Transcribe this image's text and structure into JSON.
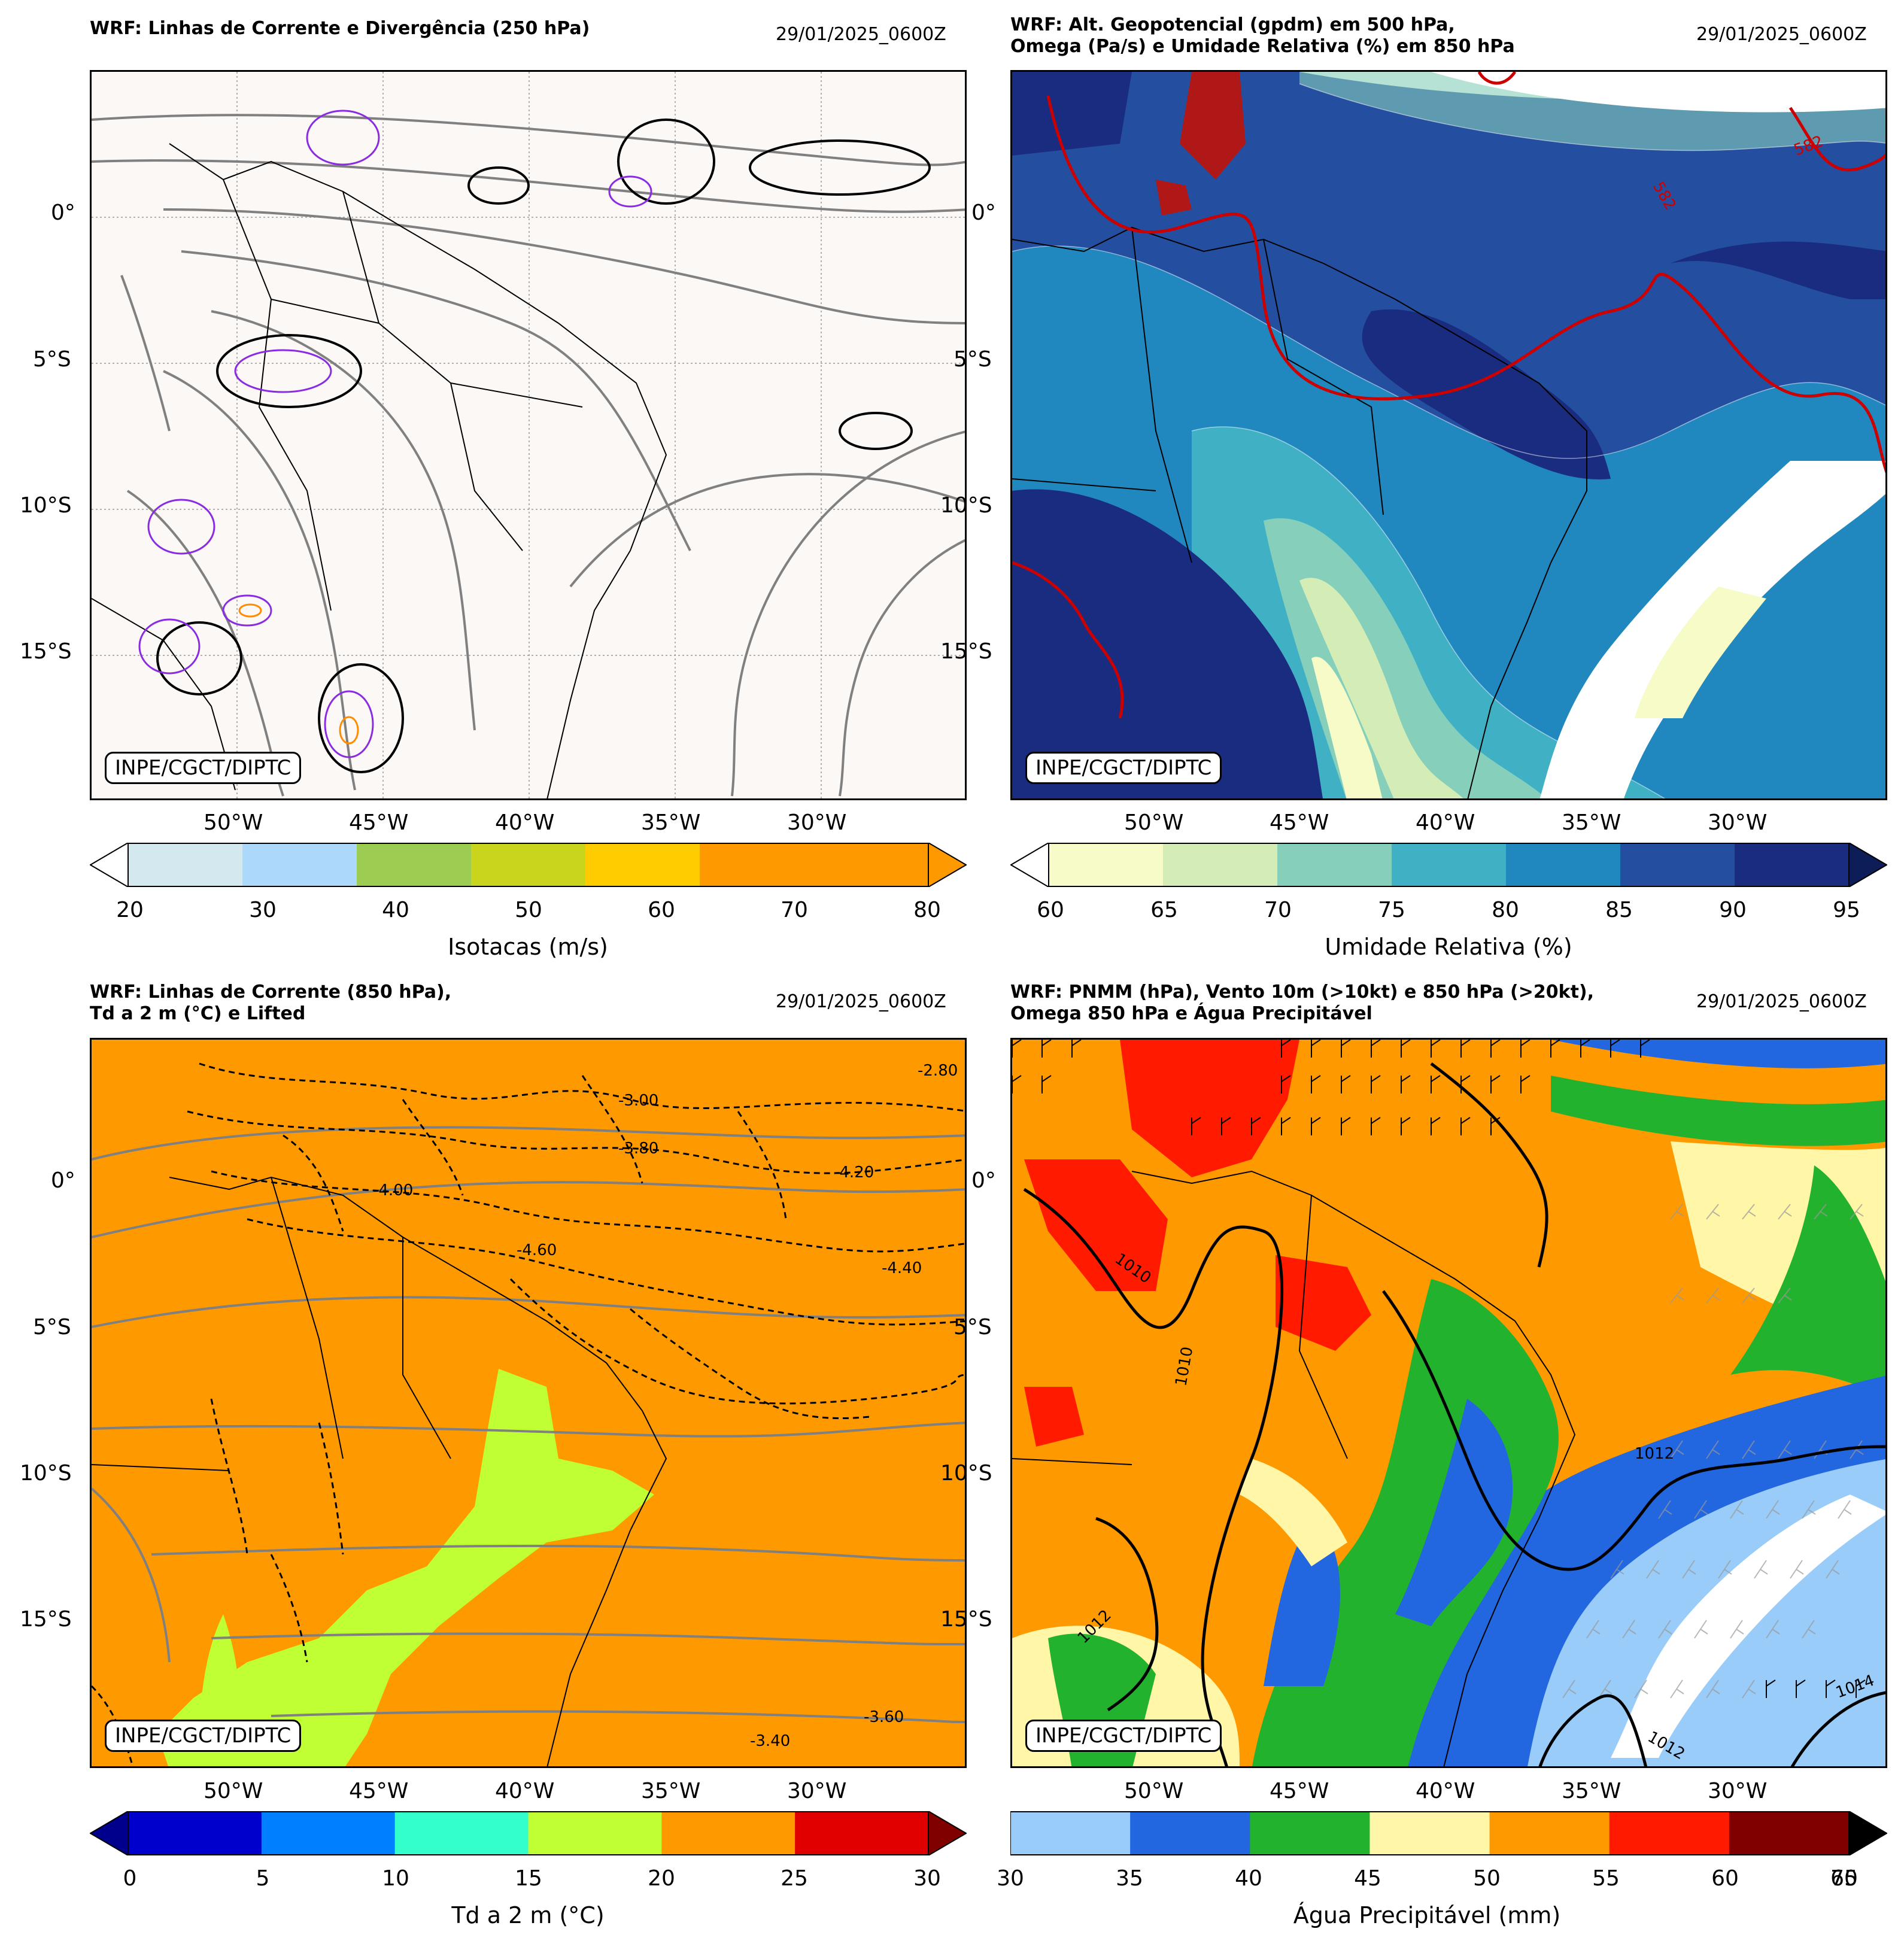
{
  "panels": [
    {
      "title": "WRF: Linhas de Corrente e Divergência (250 hPa)",
      "date": "29/01/2025_0600Z",
      "credit": "INPE/CGCT/DIPTC",
      "lat_ticks": [
        "0°",
        "5°S",
        "10°S",
        "15°S"
      ],
      "lon_ticks": [
        "50°W",
        "45°W",
        "40°W",
        "35°W",
        "30°W"
      ],
      "background": "#fbf8f6",
      "colorbar": {
        "label": "Isotacas (m/s)",
        "ticks": [
          "20",
          "30",
          "40",
          "50",
          "60",
          "70",
          "80"
        ],
        "colors": [
          "#d3e9ef",
          "#acd9fb",
          "#9ccd52",
          "#c8d51c",
          "#ffcc00",
          "#ff9900",
          "#ff9900"
        ],
        "extend_min_color": "#ffffff",
        "extend_max_color": "#ff9900"
      }
    },
    {
      "title": "WRF: Alt. Geopotencial (gpdm) em 500 hPa,\nOmega (Pa/s) e Umidade Relativa (%) em 850 hPa",
      "date": "29/01/2025_0600Z",
      "credit": "INPE/CGCT/DIPTC",
      "lat_ticks": [
        "0°",
        "5°S",
        "10°S",
        "15°S"
      ],
      "lon_ticks": [
        "50°W",
        "45°W",
        "40°W",
        "35°W",
        "30°W"
      ],
      "contour_labels": [
        "582",
        "582"
      ],
      "colorbar": {
        "label": "Umidade Relativa (%)",
        "ticks": [
          "60",
          "65",
          "70",
          "75",
          "80",
          "85",
          "90",
          "95"
        ],
        "colors": [
          "#f6fbc8",
          "#d4edb7",
          "#86cfbb",
          "#40b1c4",
          "#2087bf",
          "#244ea0",
          "#1a2c80"
        ],
        "extend_min_color": "#ffffff",
        "extend_max_color": "#0c1d58"
      }
    },
    {
      "title": "WRF: Linhas de Corrente (850 hPa),\nTd a 2 m (°C) e Lifted",
      "date": "29/01/2025_0600Z",
      "credit": "INPE/CGCT/DIPTC",
      "lat_ticks": [
        "0°",
        "5°S",
        "10°S",
        "15°S"
      ],
      "lon_ticks": [
        "50°W",
        "45°W",
        "40°W",
        "35°W",
        "30°W"
      ],
      "contour_labels": [
        "-3.60",
        "-2.80",
        "-3.00",
        "-4.00",
        "-4.20",
        "-4.40",
        "-4.60",
        "-3.80",
        "-3.40"
      ],
      "colorbar": {
        "label": "Td a 2 m (°C)",
        "ticks": [
          "0",
          "5",
          "10",
          "15",
          "20",
          "25",
          "30"
        ],
        "colors": [
          "#0000cc",
          "#0080ff",
          "#33ffcc",
          "#bfff33",
          "#ff9900",
          "#e00000"
        ],
        "extend_min_color": "#00008c",
        "extend_max_color": "#800000"
      }
    },
    {
      "title": "WRF: PNMM (hPa), Vento 10m (>10kt) e 850 hPa (>20kt),\nOmega 850 hPa e Água Precipitável",
      "date": "29/01/2025_0600Z",
      "credit": "INPE/CGCT/DIPTC",
      "lat_ticks": [
        "0°",
        "5°S",
        "10°S",
        "15°S"
      ],
      "lon_ticks": [
        "50°W",
        "45°W",
        "40°W",
        "35°W",
        "30°W"
      ],
      "contour_labels": [
        "1010",
        "1010",
        "1012",
        "1012",
        "1014",
        "1012"
      ],
      "colorbar": {
        "label": "Água Precipitável (mm)",
        "ticks": [
          "30",
          "35",
          "40",
          "45",
          "50",
          "55",
          "60",
          "65",
          "70"
        ],
        "colors": [
          "#99ccf8",
          "#2266e0",
          "#22b22e",
          "#fff6a8",
          "#ff9900",
          "#ff1a00",
          "#800000"
        ],
        "extend_max_color": "#000000"
      }
    }
  ]
}
